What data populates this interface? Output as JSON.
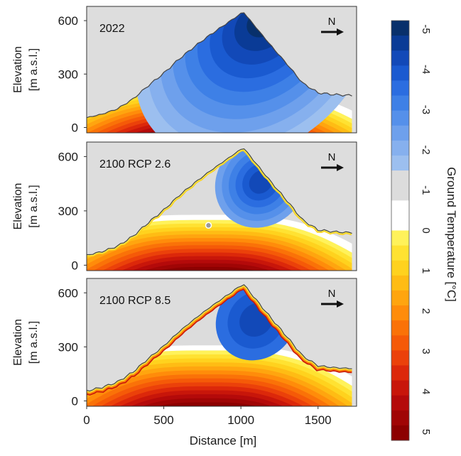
{
  "chart_data": {
    "type": "heatmap",
    "xlabel": "Distance [m]",
    "x_ticks": [
      "0",
      "500",
      "1000",
      "1500"
    ],
    "xlim": [
      0,
      1750
    ],
    "ylim": [
      -30,
      680
    ],
    "ylabel_line1": "Elevation",
    "ylabel_line2": "[m a.s.l.]",
    "y_ticks": [
      "0",
      "300",
      "600"
    ],
    "panels": [
      {
        "title": "2022",
        "north": "N",
        "cold_core": {
          "center_x": 1080,
          "center_y": 420,
          "min_temp": -5
        },
        "surface_temp_range": [
          -2,
          0
        ]
      },
      {
        "title": "2100 RCP 2.6",
        "north": "N",
        "cold_core": {
          "center_x": 1130,
          "center_y": 460,
          "min_temp": -3
        },
        "surface_temp_range": [
          0,
          2
        ]
      },
      {
        "title": "2100 RCP 8.5",
        "north": "N",
        "cold_core": {
          "center_x": 1100,
          "center_y": 450,
          "min_temp": -2
        },
        "surface_temp_range": [
          1,
          5
        ]
      }
    ],
    "surface_profile": [
      [
        0,
        55
      ],
      [
        100,
        75
      ],
      [
        200,
        105
      ],
      [
        300,
        160
      ],
      [
        400,
        235
      ],
      [
        500,
        305
      ],
      [
        600,
        385
      ],
      [
        700,
        455
      ],
      [
        800,
        520
      ],
      [
        900,
        580
      ],
      [
        1000,
        640
      ],
      [
        1020,
        645
      ],
      [
        1100,
        560
      ],
      [
        1200,
        455
      ],
      [
        1300,
        355
      ],
      [
        1400,
        250
      ],
      [
        1500,
        195
      ],
      [
        1600,
        185
      ],
      [
        1700,
        180
      ]
    ],
    "colorbar": {
      "label": "Ground Temperature [°C]",
      "ticks": [
        "-5",
        "-4",
        "-3",
        "-2",
        "-1",
        "0",
        "1",
        "2",
        "3",
        "4",
        "5"
      ],
      "range": [
        -5,
        5
      ],
      "colors": [
        "#08306b",
        "#0a3b96",
        "#1249b8",
        "#1a5ad0",
        "#2b6de0",
        "#3e80e6",
        "#5590ea",
        "#6ea0ec",
        "#86b0ee",
        "#9cbfef",
        "#dcdcdc",
        "#dcdcdc",
        "#ffffff",
        "#ffffff",
        "#fff25a",
        "#ffe232",
        "#ffd21e",
        "#ffbc14",
        "#ffa50f",
        "#ff8c0a",
        "#fa7208",
        "#f55a08",
        "#eb410a",
        "#dc280a",
        "#c8160a",
        "#b40a0a",
        "#a00505",
        "#8c0000"
      ]
    }
  }
}
